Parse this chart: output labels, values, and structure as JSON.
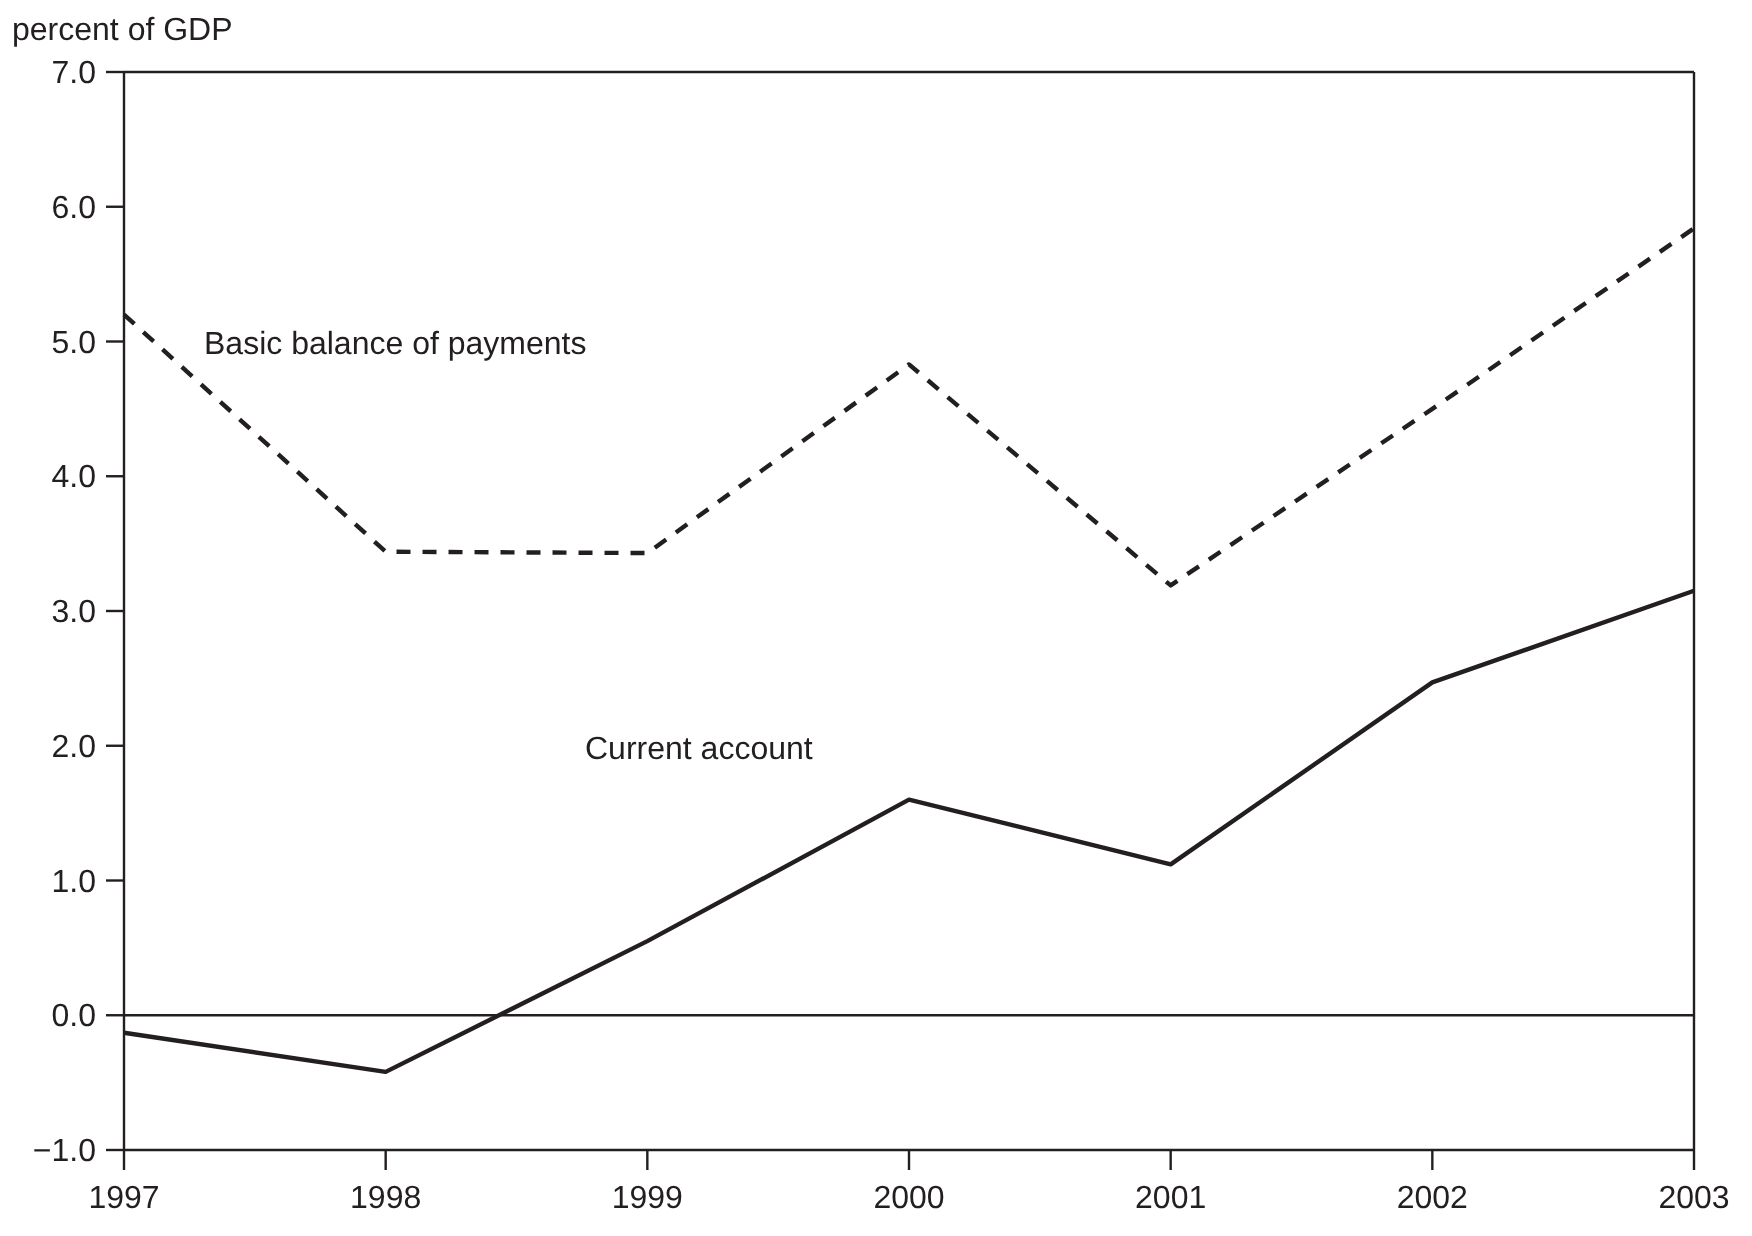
{
  "chart_data": {
    "type": "line",
    "ylabel": "percent of GDP",
    "x": [
      1997,
      1998,
      1999,
      2000,
      2001,
      2002,
      2003
    ],
    "xlim": [
      1997,
      2003
    ],
    "xticks": [
      1997,
      1998,
      1999,
      2000,
      2001,
      2002,
      2003
    ],
    "ylim": [
      -1,
      7
    ],
    "yticks": [
      {
        "value": -1,
        "label": "−1.0"
      },
      {
        "value": 0,
        "label": "0.0"
      },
      {
        "value": 1,
        "label": "1.0"
      },
      {
        "value": 2,
        "label": "2.0"
      },
      {
        "value": 3,
        "label": "3.0"
      },
      {
        "value": 4,
        "label": "4.0"
      },
      {
        "value": 5,
        "label": "5.0"
      },
      {
        "value": 6,
        "label": "6.0"
      },
      {
        "value": 7,
        "label": "7.0"
      }
    ],
    "series": [
      {
        "name": "Basic balance of payments",
        "color": "#231f20",
        "line_style": "dashed",
        "values": [
          5.2,
          3.44,
          3.43,
          4.83,
          3.19,
          4.5,
          5.84
        ]
      },
      {
        "name": "Current account",
        "color": "#231f20",
        "line_style": "solid",
        "values": [
          -0.13,
          -0.42,
          0.55,
          1.6,
          1.12,
          2.47,
          3.15
        ]
      }
    ],
    "ref_lines": [
      {
        "axis": "y",
        "value": 0,
        "color": "#231f20"
      }
    ],
    "grid": false,
    "marker": "none"
  }
}
